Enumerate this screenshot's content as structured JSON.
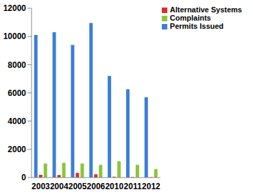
{
  "chart_data": {
    "type": "bar",
    "categories": [
      "2003",
      "2004",
      "2005",
      "2006",
      "2010",
      "2011",
      "2012"
    ],
    "series": [
      {
        "name": "Permits Issued",
        "color": "#3b7fd6",
        "values": [
          10100,
          10300,
          9400,
          10950,
          7200,
          6250,
          5700
        ]
      },
      {
        "name": "Alternative Systems",
        "color": "#d9302b",
        "values": [
          200,
          180,
          330,
          230,
          60,
          40,
          30
        ]
      },
      {
        "name": "Complaints",
        "color": "#8cc43c",
        "values": [
          1000,
          1050,
          1000,
          900,
          1150,
          900,
          600
        ]
      }
    ],
    "ylim": [
      0,
      12000
    ],
    "yticks": [
      0,
      2000,
      4000,
      6000,
      8000,
      10000,
      12000
    ],
    "grid": false,
    "legend": "upper right"
  }
}
